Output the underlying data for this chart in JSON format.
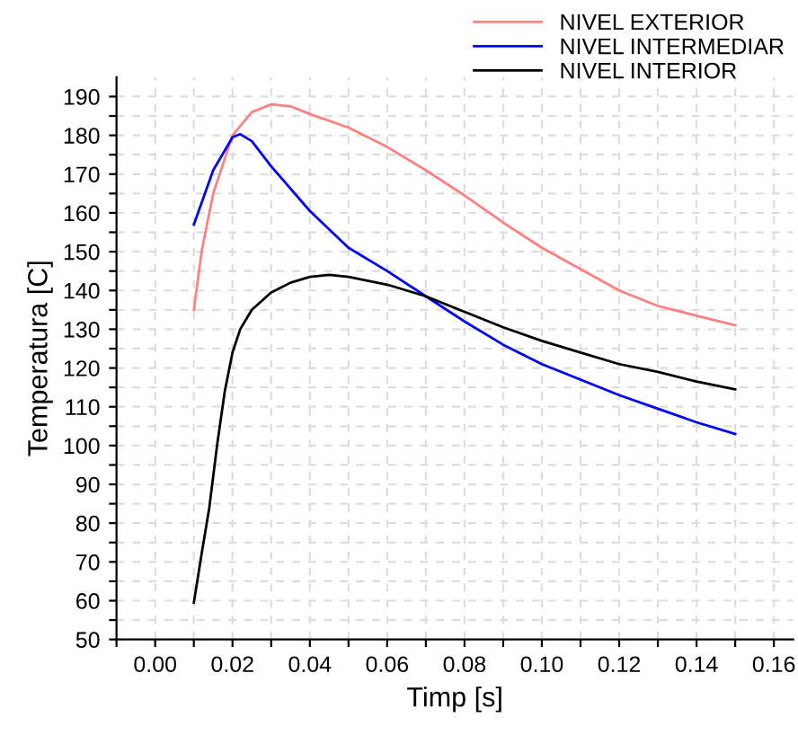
{
  "chart_data": {
    "type": "line",
    "xlabel": "Timp [s]",
    "ylabel": "Temperatura [C]",
    "legend": "top right",
    "grid": true,
    "line_style": "solid",
    "marker": "none",
    "xlim": [
      -0.01,
      0.165
    ],
    "ylim": [
      50,
      195
    ],
    "xticks": [
      {
        "value": -0.01,
        "label": null
      },
      {
        "value": 0.0,
        "label": "0.00"
      },
      {
        "value": 0.01,
        "label": null
      },
      {
        "value": 0.02,
        "label": "0.02"
      },
      {
        "value": 0.03,
        "label": null
      },
      {
        "value": 0.04,
        "label": "0.04"
      },
      {
        "value": 0.05,
        "label": null
      },
      {
        "value": 0.06,
        "label": "0.06"
      },
      {
        "value": 0.07,
        "label": null
      },
      {
        "value": 0.08,
        "label": "0.08"
      },
      {
        "value": 0.09,
        "label": null
      },
      {
        "value": 0.1,
        "label": "0.10"
      },
      {
        "value": 0.11,
        "label": null
      },
      {
        "value": 0.12,
        "label": "0.12"
      },
      {
        "value": 0.13,
        "label": null
      },
      {
        "value": 0.14,
        "label": "0.14"
      },
      {
        "value": 0.15,
        "label": null
      },
      {
        "value": 0.16,
        "label": "0.16"
      }
    ],
    "yticks": [
      50,
      {
        "value": 55,
        "label": null
      },
      60,
      {
        "value": 65,
        "label": null
      },
      70,
      {
        "value": 75,
        "label": null
      },
      80,
      {
        "value": 85,
        "label": null
      },
      90,
      {
        "value": 95,
        "label": null
      },
      100,
      {
        "value": 105,
        "label": null
      },
      110,
      {
        "value": 115,
        "label": null
      },
      120,
      {
        "value": 125,
        "label": null
      },
      130,
      {
        "value": 135,
        "label": null
      },
      140,
      {
        "value": 145,
        "label": null
      },
      150,
      {
        "value": 155,
        "label": null
      },
      160,
      {
        "value": 165,
        "label": null
      },
      170,
      {
        "value": 175,
        "label": null
      },
      180,
      {
        "value": 185,
        "label": null
      },
      190
    ],
    "series": [
      {
        "name": "NIVEL EXTERIOR",
        "color": "#ff8080",
        "x": [
          0.01,
          0.012,
          0.015,
          0.02,
          0.025,
          0.03,
          0.035,
          0.04,
          0.05,
          0.06,
          0.07,
          0.08,
          0.09,
          0.1,
          0.11,
          0.12,
          0.13,
          0.14,
          0.15
        ],
        "values": [
          135,
          150,
          165,
          180,
          186,
          188,
          187.5,
          185.5,
          182,
          177,
          171,
          164.5,
          157.5,
          151,
          145.5,
          140,
          136,
          133.5,
          131
        ]
      },
      {
        "name": "NIVEL INTERMEDIAR",
        "color": "#0000ff",
        "x": [
          0.01,
          0.015,
          0.02,
          0.022,
          0.025,
          0.03,
          0.04,
          0.05,
          0.06,
          0.07,
          0.08,
          0.09,
          0.1,
          0.11,
          0.12,
          0.13,
          0.14,
          0.15
        ],
        "values": [
          157,
          171,
          179.5,
          180.3,
          178.5,
          172,
          160.5,
          151,
          145,
          138.5,
          132,
          126,
          121,
          117,
          113,
          109.5,
          106,
          103
        ]
      },
      {
        "name": "NIVEL INTERIOR",
        "color": "#000000",
        "x": [
          0.01,
          0.012,
          0.014,
          0.016,
          0.018,
          0.02,
          0.022,
          0.025,
          0.03,
          0.035,
          0.04,
          0.045,
          0.05,
          0.06,
          0.07,
          0.08,
          0.09,
          0.1,
          0.11,
          0.12,
          0.13,
          0.14,
          0.15
        ],
        "values": [
          59.5,
          72,
          84,
          100,
          114,
          124,
          130,
          135,
          139.5,
          142,
          143.5,
          144,
          143.5,
          141.5,
          138.5,
          134.5,
          130.5,
          127,
          124,
          121,
          119,
          116.5,
          114.5
        ]
      }
    ]
  }
}
